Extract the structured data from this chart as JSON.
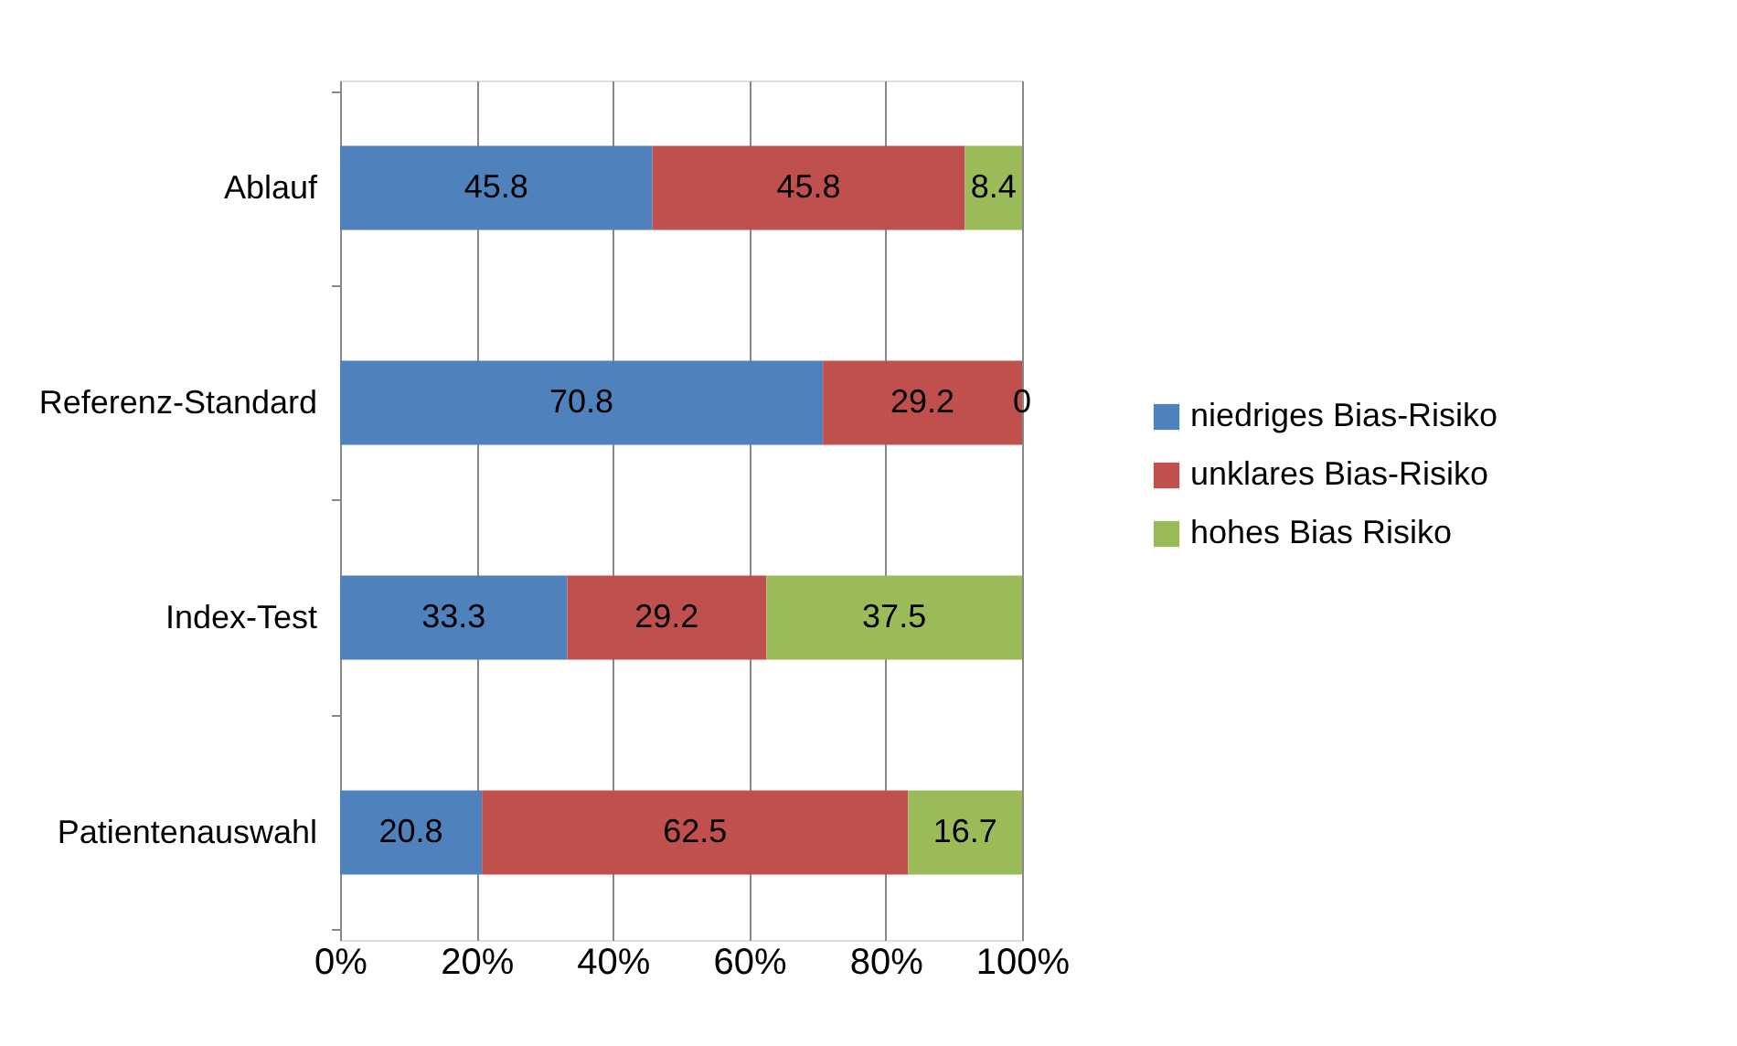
{
  "chart_data": {
    "type": "bar",
    "orientation": "horizontal",
    "stacked": true,
    "categories": [
      "Ablauf",
      "Referenz-Standard",
      "Index-Test",
      "Patientenauswahl"
    ],
    "series": [
      {
        "name": "niedriges Bias-Risiko",
        "color": "#4f81bd",
        "values": [
          45.8,
          70.8,
          33.3,
          20.8
        ]
      },
      {
        "name": "unklares Bias-Risiko",
        "color": "#c0504d",
        "values": [
          45.8,
          29.2,
          29.2,
          62.5
        ]
      },
      {
        "name": "hohes Bias Risiko",
        "color": "#9bbb59",
        "values": [
          8.4,
          0,
          37.5,
          16.7
        ]
      }
    ],
    "xlim": [
      0,
      100
    ],
    "xticks": [
      {
        "value": 0,
        "label": "0%"
      },
      {
        "value": 20,
        "label": "20%"
      },
      {
        "value": 40,
        "label": "40%"
      },
      {
        "value": 60,
        "label": "60%"
      },
      {
        "value": 80,
        "label": "80%"
      },
      {
        "value": 100,
        "label": "100%"
      }
    ],
    "grid": "x",
    "legend": "right",
    "data_labels": true
  }
}
